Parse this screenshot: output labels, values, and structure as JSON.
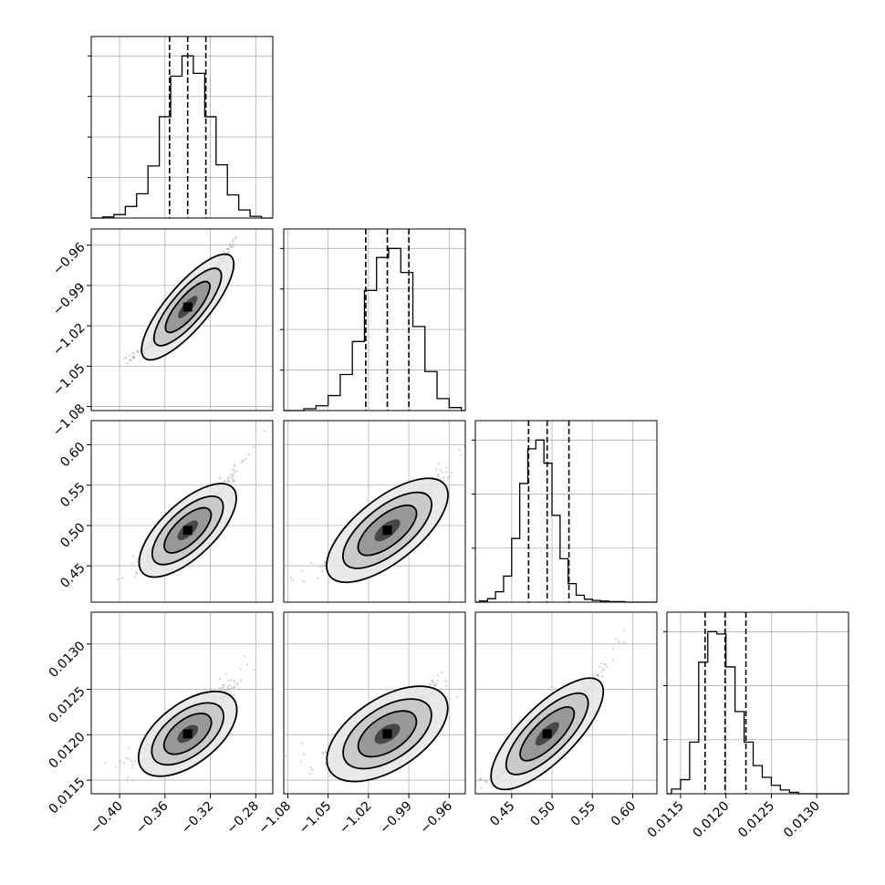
{
  "figure": {
    "type": "corner-plot",
    "parameters": 4
  },
  "colors": {
    "background": "#ffffff",
    "frame": "#000000",
    "grid": "#b0b0b0",
    "points": "#9a9a9a",
    "density_dark": "#000000"
  },
  "chart_data": [
    {
      "type": "histogram",
      "param": 0,
      "xlim": [
        -0.425,
        -0.265
      ],
      "grid": true,
      "bin_edges": [
        -0.415,
        -0.405,
        -0.395,
        -0.385,
        -0.375,
        -0.365,
        -0.355,
        -0.345,
        -0.335,
        -0.325,
        -0.315,
        -0.305,
        -0.295,
        -0.285,
        -0.275
      ],
      "counts": [
        2,
        6,
        20,
        42,
        90,
        175,
        245,
        280,
        250,
        175,
        92,
        40,
        14,
        3
      ],
      "quantiles": [
        -0.356,
        -0.34,
        -0.324
      ],
      "ytick_count": 4
    },
    {
      "type": "histogram",
      "param": 1,
      "xlim": [
        -1.083,
        -0.948
      ],
      "grid": true,
      "bin_edges": [
        -1.068,
        -1.059,
        -1.05,
        -1.041,
        -1.032,
        -1.023,
        -1.014,
        -1.005,
        -0.996,
        -0.987,
        -0.978,
        -0.969,
        -0.96,
        -0.951
      ],
      "counts": [
        3,
        8,
        25,
        60,
        115,
        200,
        255,
        270,
        230,
        140,
        65,
        20,
        5
      ],
      "quantiles": [
        -1.022,
        -1.006,
        -0.99
      ],
      "ytick_count": 4
    },
    {
      "type": "histogram",
      "param": 2,
      "xlim": [
        0.405,
        0.63
      ],
      "grid": true,
      "bin_edges": [
        0.41,
        0.42,
        0.43,
        0.44,
        0.45,
        0.46,
        0.47,
        0.48,
        0.49,
        0.5,
        0.51,
        0.52,
        0.53,
        0.54,
        0.55,
        0.56,
        0.57,
        0.58,
        0.59,
        0.6,
        0.61
      ],
      "counts": [
        2,
        6,
        18,
        45,
        110,
        205,
        265,
        280,
        240,
        150,
        75,
        32,
        12,
        5,
        3,
        2,
        1,
        1,
        0,
        0
      ],
      "quantiles": [
        0.471,
        0.494,
        0.521
      ],
      "ytick_count": 3
    },
    {
      "type": "histogram",
      "param": 3,
      "xlim": [
        0.01135,
        0.01335
      ],
      "grid": true,
      "bin_edges": [
        0.0114,
        0.0115,
        0.0116,
        0.0117,
        0.0118,
        0.0119,
        0.012,
        0.0121,
        0.0122,
        0.0123,
        0.0124,
        0.0125,
        0.0126,
        0.0127,
        0.0128
      ],
      "counts": [
        10,
        30,
        110,
        280,
        345,
        340,
        270,
        175,
        110,
        60,
        35,
        18,
        8,
        3
      ],
      "quantiles": [
        0.01177,
        0.01199,
        0.01222
      ],
      "ytick_count": 3
    },
    {
      "type": "scatter-density",
      "xparam": 0,
      "yparam": 1,
      "slope": 1.0,
      "spread": 0.12
    },
    {
      "type": "scatter-density",
      "xparam": 0,
      "yparam": 2,
      "slope": 0.85,
      "spread": 0.3
    },
    {
      "type": "scatter-density",
      "xparam": 1,
      "yparam": 2,
      "slope": 0.85,
      "spread": 0.3
    },
    {
      "type": "scatter-density",
      "xparam": 0,
      "yparam": 3,
      "slope": 0.7,
      "spread": 0.45
    },
    {
      "type": "scatter-density",
      "xparam": 1,
      "yparam": 3,
      "slope": 0.7,
      "spread": 0.45
    },
    {
      "type": "scatter-density",
      "xparam": 2,
      "yparam": 3,
      "slope": 1.0,
      "spread": 0.2
    }
  ],
  "params": [
    {
      "lim": [
        -0.425,
        -0.265
      ],
      "mean": -0.34,
      "sd": 0.016,
      "ticks": [
        -0.4,
        -0.36,
        -0.32,
        -0.28
      ],
      "tick_labels": [
        "−0.40",
        "−0.36",
        "−0.32",
        "−0.28"
      ]
    },
    {
      "lim": [
        -1.083,
        -0.948
      ],
      "mean": -1.006,
      "sd": 0.016,
      "ticks": [
        -1.08,
        -1.05,
        -1.02,
        -0.99,
        -0.96
      ],
      "tick_labels": [
        "−1.08",
        "−1.05",
        "−1.02",
        "−0.99",
        "−0.96"
      ]
    },
    {
      "lim": [
        0.405,
        0.63
      ],
      "mean": 0.494,
      "sd": 0.025,
      "ticks": [
        0.45,
        0.5,
        0.55,
        0.6
      ],
      "tick_labels": [
        "0.45",
        "0.50",
        "0.55",
        "0.60"
      ]
    },
    {
      "lim": [
        0.01135,
        0.01335
      ],
      "mean": 0.01201,
      "sd": 0.00022,
      "ticks": [
        0.0115,
        0.012,
        0.0125,
        0.013
      ],
      "tick_labels": [
        "0.0115",
        "0.0120",
        "0.0125",
        "0.0130"
      ]
    }
  ]
}
